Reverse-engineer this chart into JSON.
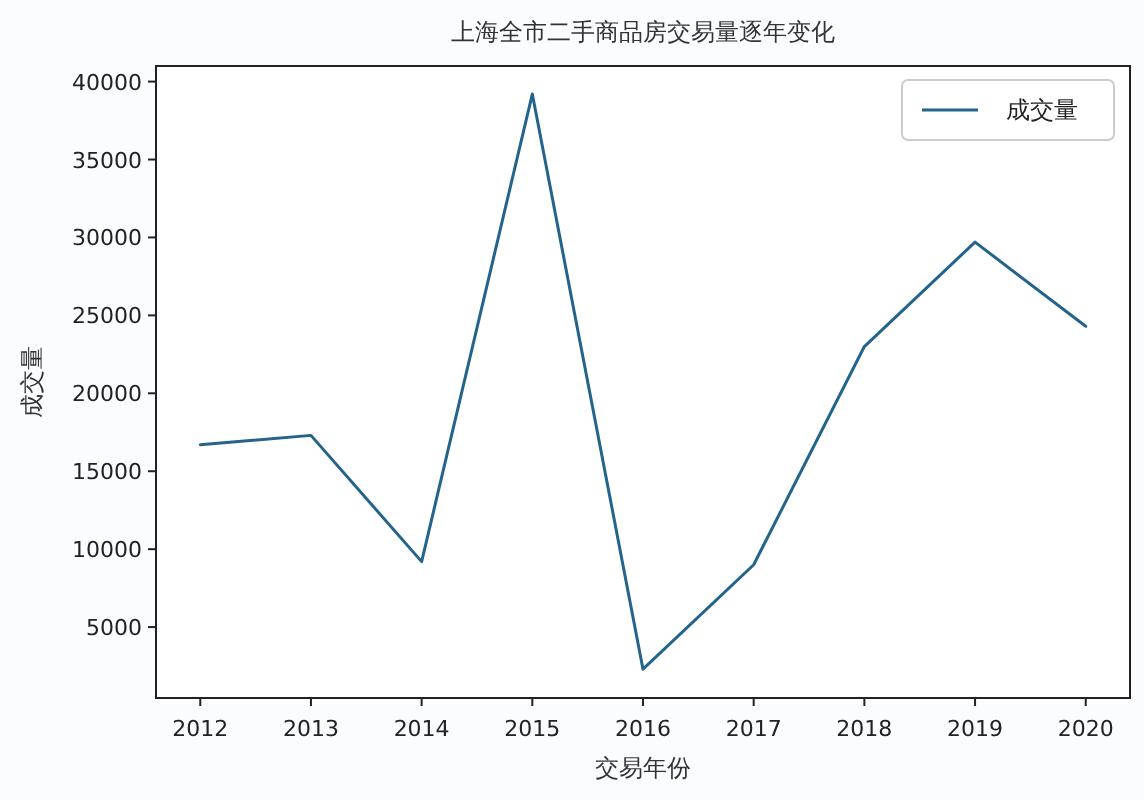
{
  "chart_data": {
    "type": "line",
    "title": "上海全市二手商品房交易量逐年变化",
    "xlabel": "交易年份",
    "ylabel": "成交量",
    "x": [
      2012,
      2013,
      2014,
      2015,
      2016,
      2017,
      2018,
      2019,
      2020
    ],
    "series": [
      {
        "name": "成交量",
        "color": "#24648c",
        "values": [
          16700,
          17300,
          9200,
          39200,
          2300,
          9000,
          23000,
          29700,
          24300
        ]
      }
    ],
    "xlim": [
      2011.6,
      2020.4
    ],
    "xticks": [
      2012,
      2013,
      2014,
      2015,
      2016,
      2017,
      2018,
      2019,
      2020
    ],
    "ylim": [
      450,
      41000
    ],
    "yticks": [
      5000,
      10000,
      15000,
      20000,
      25000,
      30000,
      35000,
      40000
    ],
    "legend": "top right",
    "line_style": "solid"
  }
}
